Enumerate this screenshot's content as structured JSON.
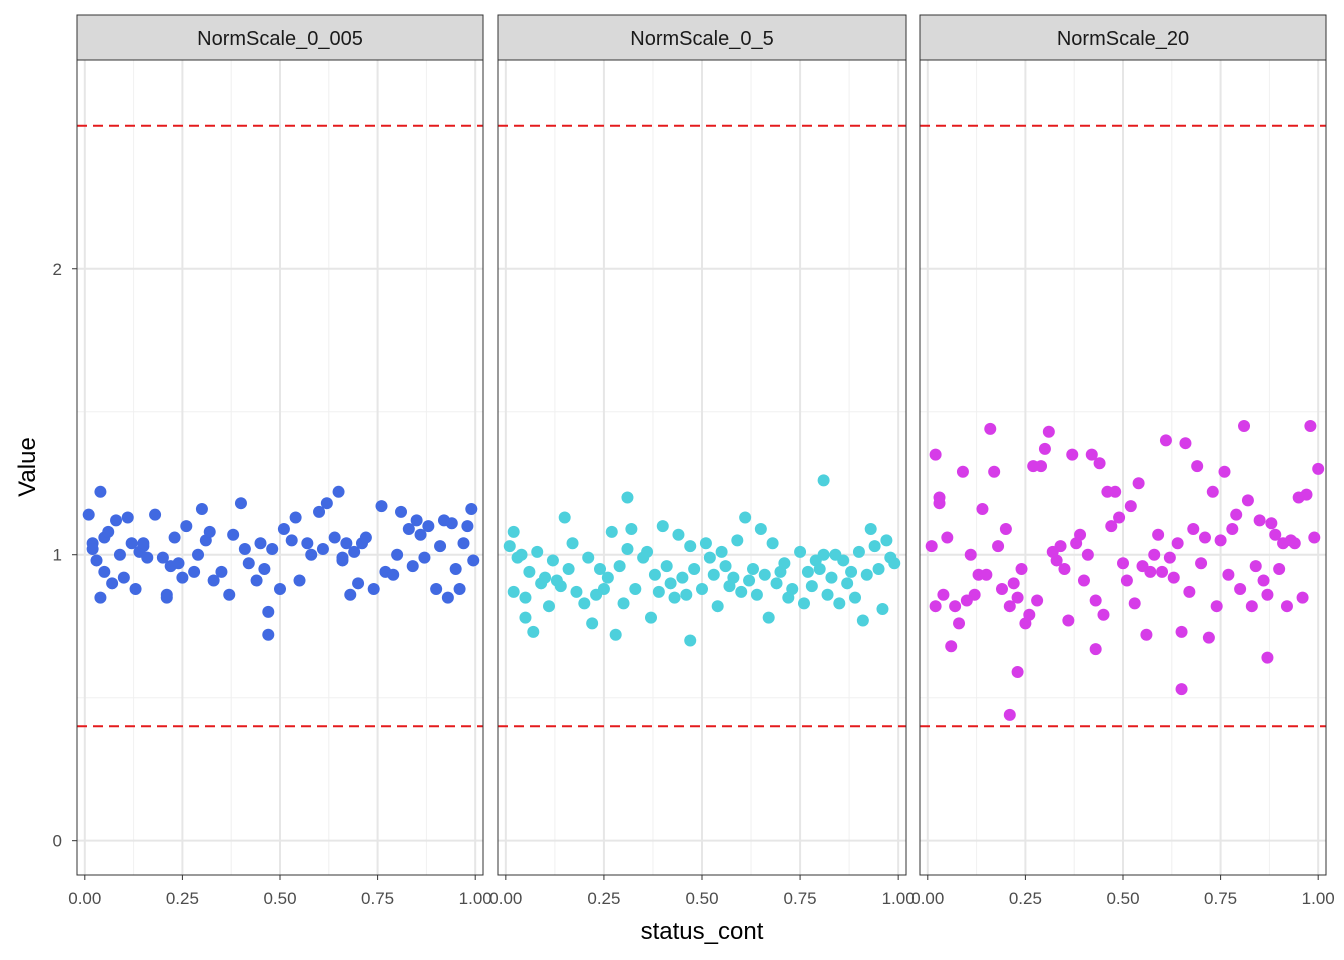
{
  "chart_data": {
    "type": "scatter",
    "facets": [
      {
        "name": "NormScale_0_005",
        "color": "#4169E1",
        "x": [
          0.01,
          0.02,
          0.02,
          0.03,
          0.04,
          0.05,
          0.05,
          0.06,
          0.07,
          0.08,
          0.09,
          0.1,
          0.11,
          0.12,
          0.13,
          0.14,
          0.15,
          0.16,
          0.18,
          0.2,
          0.21,
          0.22,
          0.23,
          0.24,
          0.25,
          0.26,
          0.28,
          0.29,
          0.3,
          0.31,
          0.32,
          0.33,
          0.35,
          0.37,
          0.38,
          0.4,
          0.41,
          0.42,
          0.44,
          0.45,
          0.46,
          0.47,
          0.48,
          0.5,
          0.51,
          0.53,
          0.54,
          0.55,
          0.57,
          0.58,
          0.6,
          0.61,
          0.62,
          0.64,
          0.65,
          0.66,
          0.67,
          0.68,
          0.69,
          0.7,
          0.71,
          0.72,
          0.74,
          0.76,
          0.77,
          0.79,
          0.8,
          0.81,
          0.83,
          0.84,
          0.85,
          0.86,
          0.87,
          0.88,
          0.9,
          0.91,
          0.92,
          0.93,
          0.94,
          0.95,
          0.96,
          0.97,
          0.98,
          0.99,
          0.995,
          0.47,
          0.04,
          0.21,
          0.66,
          0.15
        ],
        "y": [
          1.14,
          1.04,
          1.02,
          0.98,
          1.22,
          1.06,
          0.94,
          1.08,
          0.9,
          1.12,
          1.0,
          0.92,
          1.13,
          1.04,
          0.88,
          1.01,
          1.03,
          0.99,
          1.14,
          0.99,
          0.85,
          0.96,
          1.06,
          0.97,
          0.92,
          1.1,
          0.94,
          1.0,
          1.16,
          1.05,
          1.08,
          0.91,
          0.94,
          0.86,
          1.07,
          1.18,
          1.02,
          0.97,
          0.91,
          1.04,
          0.95,
          0.8,
          1.02,
          0.88,
          1.09,
          1.05,
          1.13,
          0.91,
          1.04,
          1.0,
          1.15,
          1.02,
          1.18,
          1.06,
          1.22,
          0.98,
          1.04,
          0.86,
          1.01,
          0.9,
          1.04,
          1.06,
          0.88,
          1.17,
          0.94,
          0.93,
          1.0,
          1.15,
          1.09,
          0.96,
          1.12,
          1.07,
          0.99,
          1.1,
          0.88,
          1.03,
          1.12,
          0.85,
          1.11,
          0.95,
          0.88,
          1.04,
          1.1,
          1.16,
          0.98,
          0.72,
          0.85,
          0.86,
          0.99,
          1.04
        ]
      },
      {
        "name": "NormScale_0_5",
        "color": "#4DD0DC",
        "x": [
          0.01,
          0.02,
          0.02,
          0.03,
          0.04,
          0.05,
          0.05,
          0.06,
          0.07,
          0.08,
          0.09,
          0.1,
          0.11,
          0.12,
          0.13,
          0.14,
          0.15,
          0.16,
          0.17,
          0.18,
          0.2,
          0.21,
          0.22,
          0.23,
          0.24,
          0.25,
          0.26,
          0.27,
          0.28,
          0.29,
          0.3,
          0.31,
          0.32,
          0.33,
          0.35,
          0.36,
          0.37,
          0.38,
          0.39,
          0.4,
          0.41,
          0.42,
          0.43,
          0.44,
          0.45,
          0.46,
          0.47,
          0.48,
          0.5,
          0.51,
          0.52,
          0.53,
          0.54,
          0.55,
          0.56,
          0.57,
          0.58,
          0.59,
          0.6,
          0.61,
          0.62,
          0.63,
          0.64,
          0.65,
          0.66,
          0.67,
          0.68,
          0.69,
          0.7,
          0.71,
          0.72,
          0.73,
          0.75,
          0.76,
          0.77,
          0.78,
          0.79,
          0.8,
          0.81,
          0.82,
          0.83,
          0.84,
          0.85,
          0.86,
          0.87,
          0.88,
          0.89,
          0.9,
          0.91,
          0.92,
          0.93,
          0.94,
          0.95,
          0.96,
          0.97,
          0.98,
          0.99,
          0.81,
          0.31,
          0.47
        ],
        "y": [
          1.03,
          1.08,
          0.87,
          0.99,
          1.0,
          0.85,
          0.78,
          0.94,
          0.73,
          1.01,
          0.9,
          0.92,
          0.82,
          0.98,
          0.91,
          0.89,
          1.13,
          0.95,
          1.04,
          0.87,
          0.83,
          0.99,
          0.76,
          0.86,
          0.95,
          0.88,
          0.92,
          1.08,
          0.72,
          0.96,
          0.83,
          1.02,
          1.09,
          0.88,
          0.99,
          1.01,
          0.78,
          0.93,
          0.87,
          1.1,
          0.96,
          0.9,
          0.85,
          1.07,
          0.92,
          0.86,
          1.03,
          0.95,
          0.88,
          1.04,
          0.99,
          0.93,
          0.82,
          1.01,
          0.96,
          0.89,
          0.92,
          1.05,
          0.87,
          1.13,
          0.91,
          0.95,
          0.86,
          1.09,
          0.93,
          0.78,
          1.04,
          0.9,
          0.94,
          0.97,
          0.85,
          0.88,
          1.01,
          0.83,
          0.94,
          0.89,
          0.98,
          0.95,
          1.0,
          0.86,
          0.92,
          1.0,
          0.83,
          0.98,
          0.9,
          0.94,
          0.85,
          1.01,
          0.77,
          0.93,
          1.09,
          1.03,
          0.95,
          0.81,
          1.05,
          0.99,
          0.97,
          1.26,
          1.2,
          0.7
        ]
      },
      {
        "name": "NormScale_20",
        "color": "#D63CE8",
        "x": [
          0.01,
          0.02,
          0.02,
          0.03,
          0.03,
          0.04,
          0.05,
          0.06,
          0.07,
          0.08,
          0.09,
          0.1,
          0.11,
          0.12,
          0.13,
          0.14,
          0.15,
          0.16,
          0.17,
          0.18,
          0.19,
          0.2,
          0.21,
          0.22,
          0.23,
          0.24,
          0.25,
          0.26,
          0.27,
          0.28,
          0.29,
          0.3,
          0.31,
          0.32,
          0.33,
          0.34,
          0.35,
          0.36,
          0.37,
          0.38,
          0.39,
          0.4,
          0.41,
          0.42,
          0.43,
          0.44,
          0.45,
          0.46,
          0.47,
          0.48,
          0.49,
          0.5,
          0.51,
          0.52,
          0.53,
          0.54,
          0.55,
          0.56,
          0.57,
          0.58,
          0.59,
          0.6,
          0.61,
          0.62,
          0.63,
          0.64,
          0.65,
          0.66,
          0.67,
          0.68,
          0.69,
          0.7,
          0.71,
          0.72,
          0.73,
          0.74,
          0.75,
          0.76,
          0.77,
          0.78,
          0.79,
          0.8,
          0.81,
          0.82,
          0.83,
          0.84,
          0.85,
          0.86,
          0.87,
          0.88,
          0.89,
          0.9,
          0.91,
          0.92,
          0.93,
          0.94,
          0.95,
          0.96,
          0.97,
          0.98,
          0.99,
          1.0,
          0.21,
          0.65,
          0.87,
          0.23,
          0.43
        ],
        "y": [
          1.03,
          1.35,
          0.82,
          1.18,
          1.2,
          0.86,
          1.06,
          0.68,
          0.82,
          0.76,
          1.29,
          0.84,
          1.0,
          0.86,
          0.93,
          1.16,
          0.93,
          1.44,
          1.29,
          1.03,
          0.88,
          1.09,
          0.82,
          0.9,
          0.85,
          0.95,
          0.76,
          0.79,
          1.31,
          0.84,
          1.31,
          1.37,
          1.43,
          1.01,
          0.98,
          1.03,
          0.95,
          0.77,
          1.35,
          1.04,
          1.07,
          0.91,
          1.0,
          1.35,
          0.84,
          1.32,
          0.79,
          1.22,
          1.1,
          1.22,
          1.13,
          0.97,
          0.91,
          1.17,
          0.83,
          1.25,
          0.96,
          0.72,
          0.94,
          1.0,
          1.07,
          0.94,
          1.4,
          0.99,
          0.92,
          1.04,
          0.73,
          1.39,
          0.87,
          1.09,
          1.31,
          0.97,
          1.06,
          0.71,
          1.22,
          0.82,
          1.05,
          1.29,
          0.93,
          1.09,
          1.14,
          0.88,
          1.45,
          1.19,
          0.82,
          0.96,
          1.12,
          0.91,
          0.86,
          1.11,
          1.07,
          0.95,
          1.04,
          0.82,
          1.05,
          1.04,
          1.2,
          0.85,
          1.21,
          1.45,
          1.06,
          1.3,
          0.44,
          0.53,
          0.64,
          0.59,
          0.67
        ]
      }
    ],
    "reference_lines": [
      2.5,
      0.4
    ],
    "reference_line_color": "#E41A1C",
    "xlabel": "status_cont",
    "ylabel": "Value",
    "x_ticks": [
      "0.00",
      "0.25",
      "0.50",
      "0.75",
      "1.00"
    ],
    "y_ticks": [
      "0",
      "1",
      "2"
    ],
    "xlim": [
      -0.02,
      1.02
    ],
    "ylim": [
      -0.12,
      2.73
    ],
    "grid": true,
    "legend": "none"
  }
}
